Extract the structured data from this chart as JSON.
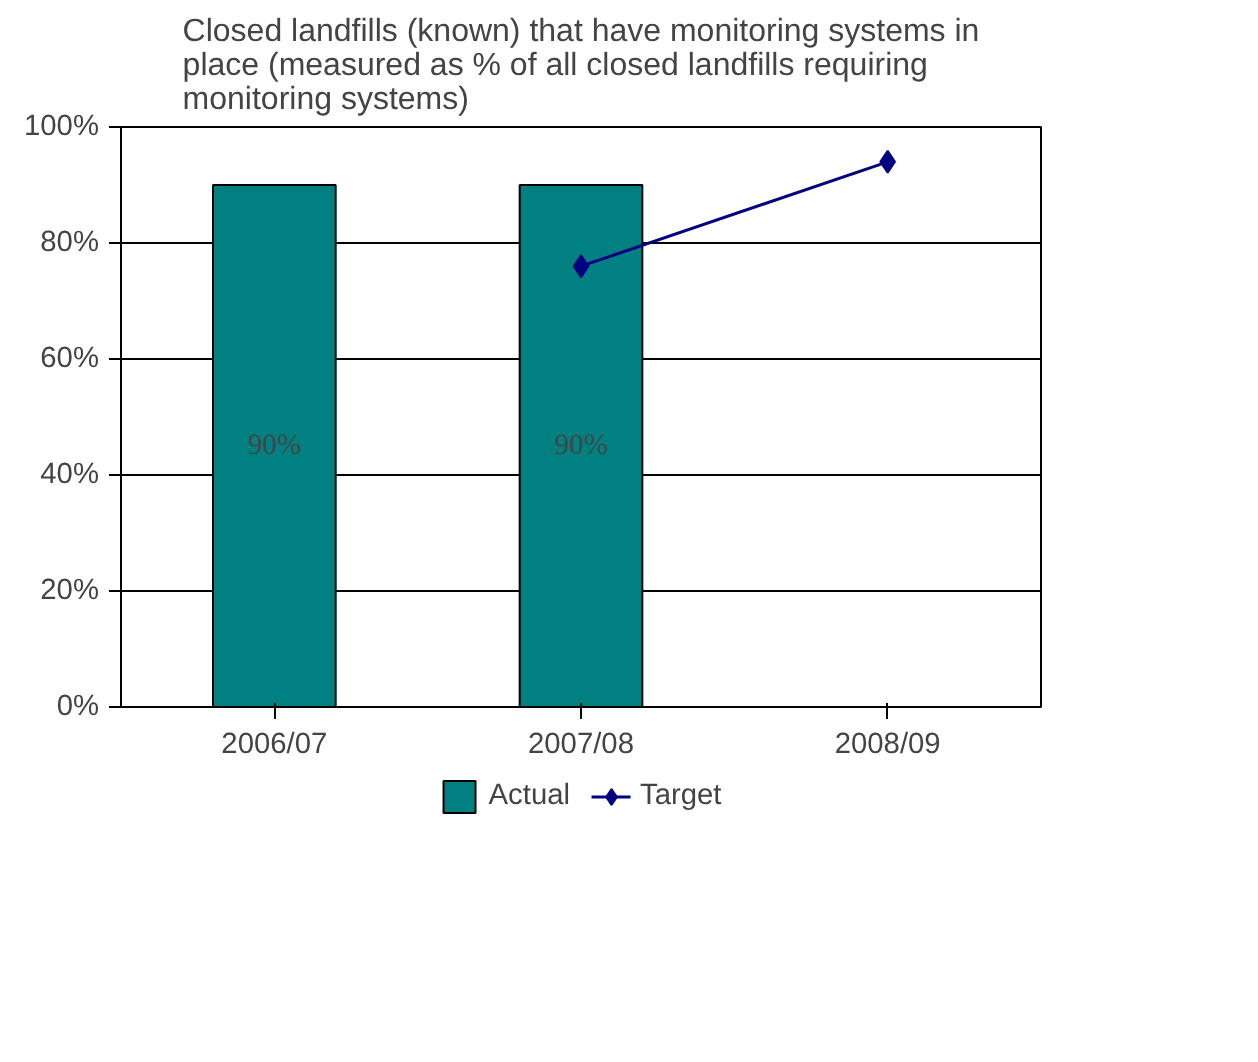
{
  "chart_data": {
    "type": "bar",
    "title": "Closed landfills (known) that have monitoring systems in place (measured as % of all closed landfills requiring monitoring systems)",
    "categories": [
      "2006/07",
      "2007/08",
      "2008/09"
    ],
    "series": [
      {
        "name": "Actual",
        "color": "#008080",
        "values": [
          90,
          90,
          null
        ],
        "value_labels": [
          "90%",
          "90%",
          null
        ]
      },
      {
        "name": "Target",
        "type": "line",
        "color": "#000080",
        "values": [
          null,
          76,
          94
        ],
        "marker": "diamond"
      }
    ],
    "ylim": [
      0,
      100
    ],
    "yticks": [
      {
        "value": 0,
        "label": "0%"
      },
      {
        "value": 20,
        "label": "20%"
      },
      {
        "value": 40,
        "label": "40%"
      },
      {
        "value": 60,
        "label": "60%"
      },
      {
        "value": 80,
        "label": "80%"
      },
      {
        "value": 100,
        "label": "100%"
      }
    ],
    "grid": "y",
    "legend": "bottom"
  }
}
